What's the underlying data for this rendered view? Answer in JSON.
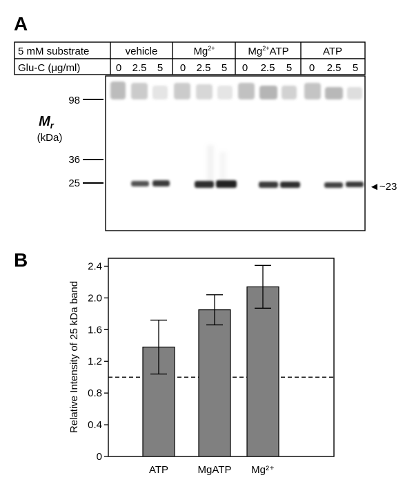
{
  "panel_a": {
    "label": "A",
    "header": {
      "row1_label": "5 mM substrate",
      "row2_label": "Glu-C (μg/ml)",
      "groups": [
        {
          "name": "vehicle",
          "doses": [
            "0",
            "2.5",
            "5"
          ]
        },
        {
          "name": "Mg",
          "sup": "2+",
          "doses": [
            "0",
            "2.5",
            "5"
          ]
        },
        {
          "name": "Mg",
          "sup": "2+",
          "suffix": "ATP",
          "doses": [
            "0",
            "2.5",
            "5"
          ]
        },
        {
          "name": "ATP",
          "doses": [
            "0",
            "2.5",
            "5"
          ]
        }
      ]
    },
    "mr_label": "M",
    "mr_sub": "r",
    "kda_label": "(kDa)",
    "markers": [
      "98",
      "36",
      "25"
    ],
    "band_annotation": "◄~23"
  },
  "chart_data": {
    "type": "bar",
    "label": "B",
    "categories": [
      "ATP",
      "MgATP",
      "Mg²⁺"
    ],
    "values": [
      1.38,
      1.85,
      2.14
    ],
    "errors": [
      0.34,
      0.19,
      0.27
    ],
    "ylabel": "Relative Intensity of 25 kDa band",
    "xlabel": "",
    "ylim": [
      0,
      2.5
    ],
    "yticks": [
      "0",
      "0.4",
      "0.8",
      "1.2",
      "1.6",
      "2.0",
      "2.4"
    ],
    "reference_line": 1.0,
    "grid": false,
    "bar_color": "#808080"
  }
}
